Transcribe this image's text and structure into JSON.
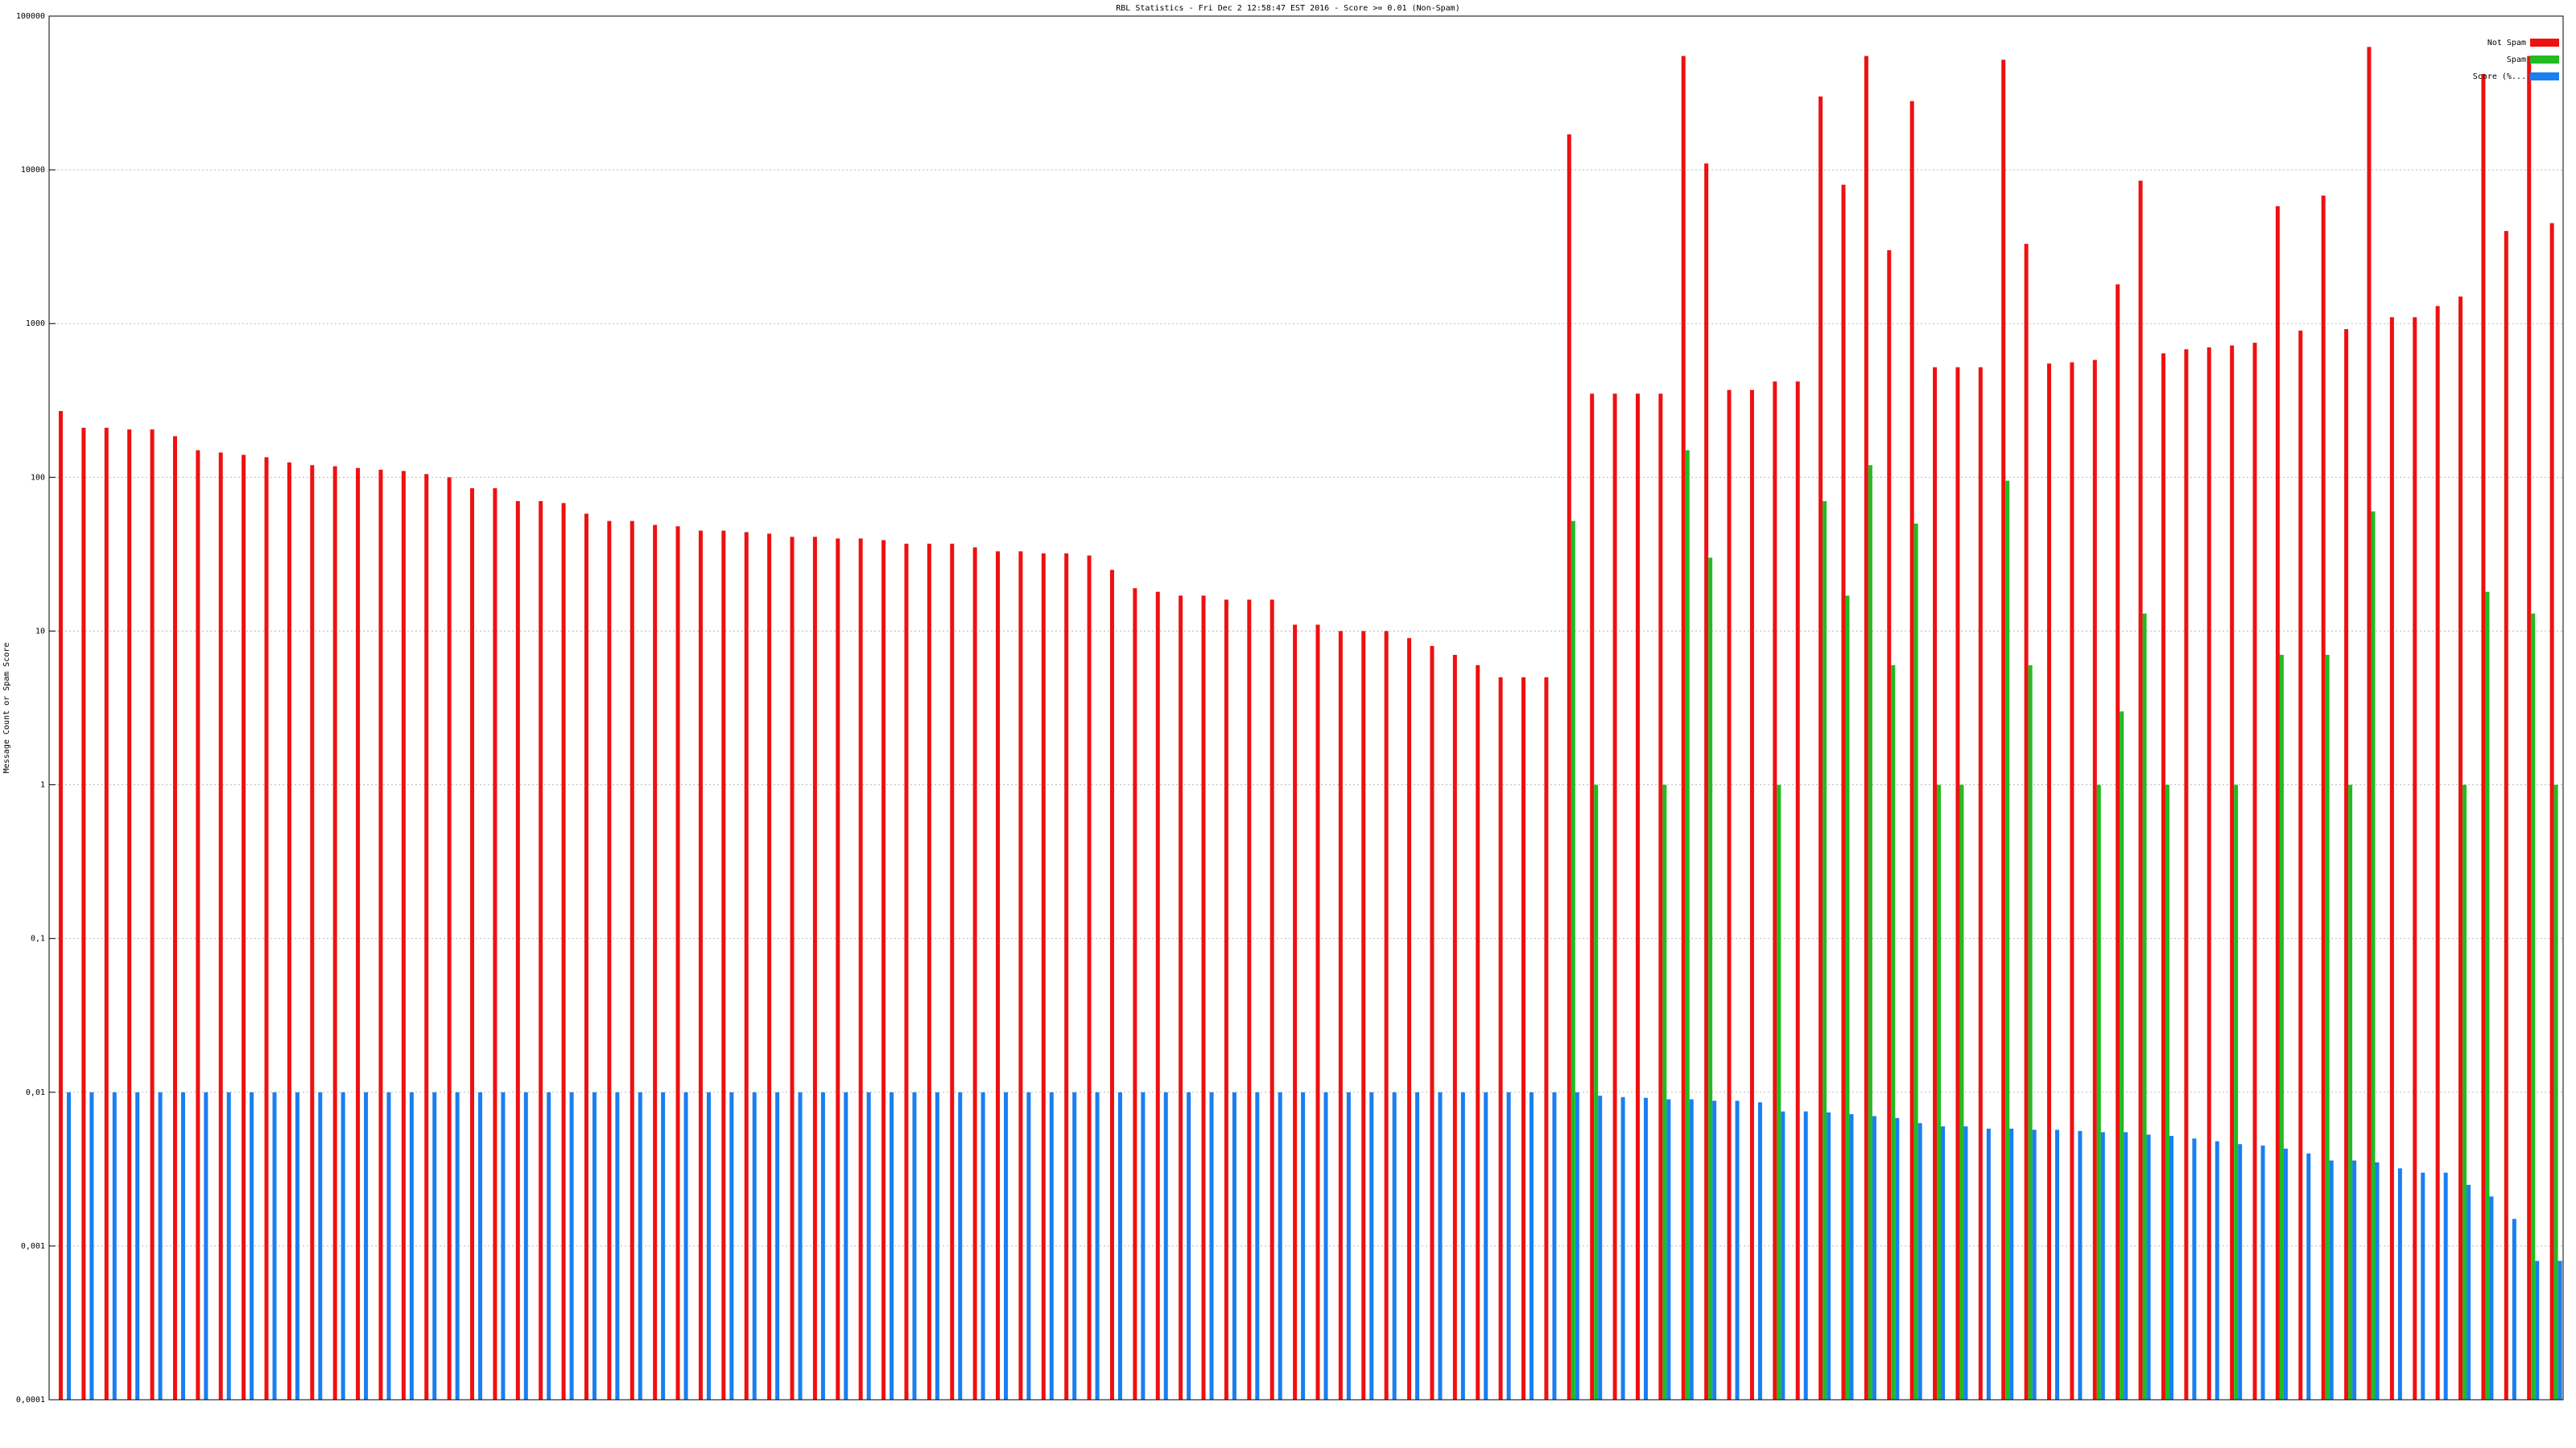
{
  "chart_data": {
    "type": "bar",
    "title": "RBL Statistics - Fri Dec  2 12:58:47 EST 2016 - Score >= 0.01 (Non-Spam)",
    "y_label": "Message Count or Spam Score",
    "yscale": "log",
    "grid": true,
    "legend": "upper right",
    "ylim": [
      0.0001,
      100000
    ],
    "yticks": [
      {
        "value": 0.0001,
        "label": "0,0001"
      },
      {
        "value": 0.001,
        "label": "0,001"
      },
      {
        "value": 0.01,
        "label": "0,01"
      },
      {
        "value": 0.1,
        "label": "0,1"
      },
      1,
      10,
      100,
      1000,
      10000,
      100000
    ],
    "categories": [
      null,
      null,
      null,
      null,
      null,
      null,
      null,
      null,
      null,
      null,
      null,
      null,
      null,
      null,
      null,
      null,
      null,
      null,
      null,
      null,
      null,
      null,
      null,
      null,
      null,
      null,
      null,
      null,
      null,
      null,
      null,
      null,
      null,
      null,
      null,
      null,
      null,
      null,
      null,
      null,
      null,
      null,
      null,
      null,
      null,
      null,
      null,
      null,
      null,
      null,
      null,
      null,
      null,
      null,
      null,
      null,
      null,
      null,
      null,
      null,
      null,
      null,
      null,
      null,
      null,
      null,
      null,
      null,
      null,
      null,
      null,
      null,
      null,
      null,
      null,
      null,
      null,
      null,
      null,
      null,
      null,
      null,
      null,
      null,
      null,
      null,
      null,
      null,
      null,
      null,
      null,
      null,
      null,
      null,
      null,
      null,
      null,
      null,
      null,
      null,
      null,
      null,
      null,
      null,
      null,
      null,
      null,
      null,
      null,
      null
    ],
    "series": [
      {
        "name": "Not Spam",
        "color": "#ee1111",
        "values": [
          270,
          210,
          210,
          205,
          205,
          185,
          150,
          145,
          140,
          135,
          125,
          120,
          118,
          115,
          112,
          110,
          105,
          100,
          85,
          85,
          70,
          70,
          68,
          58,
          52,
          52,
          49,
          48,
          45,
          45,
          44,
          43,
          41,
          41,
          40,
          40,
          39,
          37,
          37,
          37,
          35,
          33,
          33,
          32,
          32,
          31,
          25,
          19,
          18,
          17,
          17,
          16,
          16,
          16,
          11,
          11,
          10,
          10,
          10,
          9,
          8,
          7,
          6,
          5,
          5,
          5,
          17000,
          350,
          350,
          350,
          350,
          55000,
          11000,
          370,
          370,
          420,
          420,
          30000,
          8000,
          55000,
          3000,
          28000,
          520,
          520,
          520,
          52000,
          3300,
          550,
          560,
          580,
          1800,
          8500,
          640,
          680,
          700,
          720,
          750,
          5800,
          900,
          6800,
          920,
          63000,
          1100,
          1100,
          1300,
          1500,
          42000,
          4000,
          55000,
          4500
        ]
      },
      {
        "name": "Spam",
        "color": "#22bb22",
        "values": [
          null,
          null,
          null,
          null,
          null,
          null,
          null,
          null,
          null,
          null,
          null,
          null,
          null,
          null,
          null,
          null,
          null,
          null,
          null,
          null,
          null,
          null,
          null,
          null,
          null,
          null,
          null,
          null,
          null,
          null,
          null,
          null,
          null,
          null,
          null,
          null,
          null,
          null,
          null,
          null,
          null,
          null,
          null,
          null,
          null,
          null,
          null,
          null,
          null,
          null,
          null,
          null,
          null,
          null,
          null,
          null,
          null,
          null,
          null,
          null,
          null,
          null,
          null,
          null,
          null,
          null,
          52,
          1,
          null,
          null,
          1,
          150,
          30,
          null,
          null,
          1,
          null,
          70,
          17,
          120,
          6,
          50,
          1,
          1,
          null,
          95,
          6,
          null,
          null,
          1,
          3,
          13,
          1,
          null,
          null,
          1,
          null,
          7,
          null,
          7,
          1,
          60,
          null,
          null,
          null,
          1,
          18,
          null,
          13,
          1
        ]
      },
      {
        "name": "Score (%...",
        "color": "#1a7ff0",
        "values": [
          0.01,
          0.01,
          0.01,
          0.01,
          0.01,
          0.01,
          0.01,
          0.01,
          0.01,
          0.01,
          0.01,
          0.01,
          0.01,
          0.01,
          0.01,
          0.01,
          0.01,
          0.01,
          0.01,
          0.01,
          0.01,
          0.01,
          0.01,
          0.01,
          0.01,
          0.01,
          0.01,
          0.01,
          0.01,
          0.01,
          0.01,
          0.01,
          0.01,
          0.01,
          0.01,
          0.01,
          0.01,
          0.01,
          0.01,
          0.01,
          0.01,
          0.01,
          0.01,
          0.01,
          0.01,
          0.01,
          0.01,
          0.01,
          0.01,
          0.01,
          0.01,
          0.01,
          0.01,
          0.01,
          0.01,
          0.01,
          0.01,
          0.01,
          0.01,
          0.01,
          0.01,
          0.01,
          0.01,
          0.01,
          0.01,
          0.01,
          0.01,
          0.0095,
          0.0093,
          0.0092,
          0.009,
          0.009,
          0.0088,
          0.0088,
          0.0086,
          0.0075,
          0.0075,
          0.0074,
          0.0072,
          0.007,
          0.0068,
          0.0063,
          0.006,
          0.006,
          0.0058,
          0.0058,
          0.0057,
          0.0057,
          0.0056,
          0.0055,
          0.0055,
          0.0053,
          0.0052,
          0.005,
          0.0048,
          0.0046,
          0.0045,
          0.0043,
          0.004,
          0.0036,
          0.0036,
          0.0035,
          0.0032,
          0.003,
          0.003,
          0.0025,
          0.0021,
          0.0015,
          0.0008,
          0.0008
        ]
      }
    ]
  }
}
